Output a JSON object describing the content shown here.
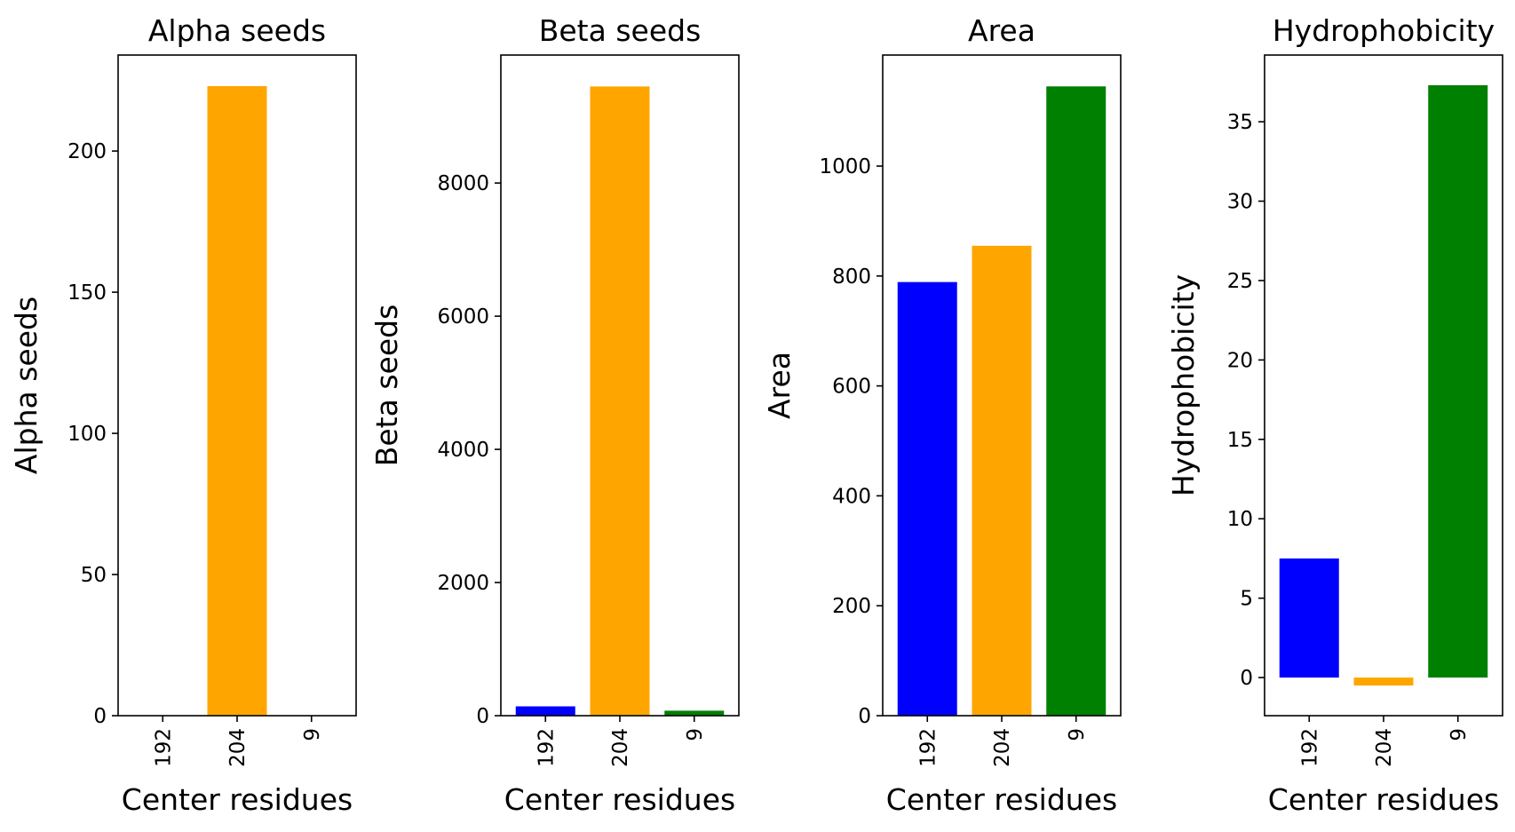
{
  "chart_data": [
    {
      "type": "bar",
      "title": "Alpha seeds",
      "xlabel": "Center residues",
      "ylabel": "Alpha seeds",
      "categories": [
        "192",
        "204",
        "9"
      ],
      "values": [
        0,
        223,
        0
      ],
      "colors": [
        "#0000ff",
        "#ffa500",
        "#008000"
      ],
      "ylim": [
        0,
        234
      ],
      "yticks": [
        0,
        50,
        100,
        150,
        200
      ],
      "grid": false,
      "legend": "none"
    },
    {
      "type": "bar",
      "title": "Beta seeds",
      "xlabel": "Center residues",
      "ylabel": "Beta seeds",
      "categories": [
        "192",
        "204",
        "9"
      ],
      "values": [
        140,
        9450,
        75
      ],
      "colors": [
        "#0000ff",
        "#ffa500",
        "#008000"
      ],
      "ylim": [
        0,
        9922
      ],
      "yticks": [
        0,
        2000,
        4000,
        6000,
        8000
      ],
      "grid": false,
      "legend": "none"
    },
    {
      "type": "bar",
      "title": "Area",
      "xlabel": "Center residues",
      "ylabel": "Area",
      "categories": [
        "192",
        "204",
        "9"
      ],
      "values": [
        789,
        855,
        1145
      ],
      "colors": [
        "#0000ff",
        "#ffa500",
        "#008000"
      ],
      "ylim": [
        0,
        1202
      ],
      "yticks": [
        0,
        200,
        400,
        600,
        800,
        1000
      ],
      "grid": false,
      "legend": "none"
    },
    {
      "type": "bar",
      "title": "Hydrophobicity",
      "xlabel": "Center residues",
      "ylabel": "Hydrophobicity",
      "categories": [
        "192",
        "204",
        "9"
      ],
      "values": [
        7.5,
        -0.5,
        37.3
      ],
      "colors": [
        "#0000ff",
        "#ffa500",
        "#008000"
      ],
      "ylim": [
        -2.4,
        39.2
      ],
      "yticks": [
        0,
        5,
        10,
        15,
        20,
        25,
        30,
        35
      ],
      "grid": false,
      "legend": "none"
    }
  ]
}
